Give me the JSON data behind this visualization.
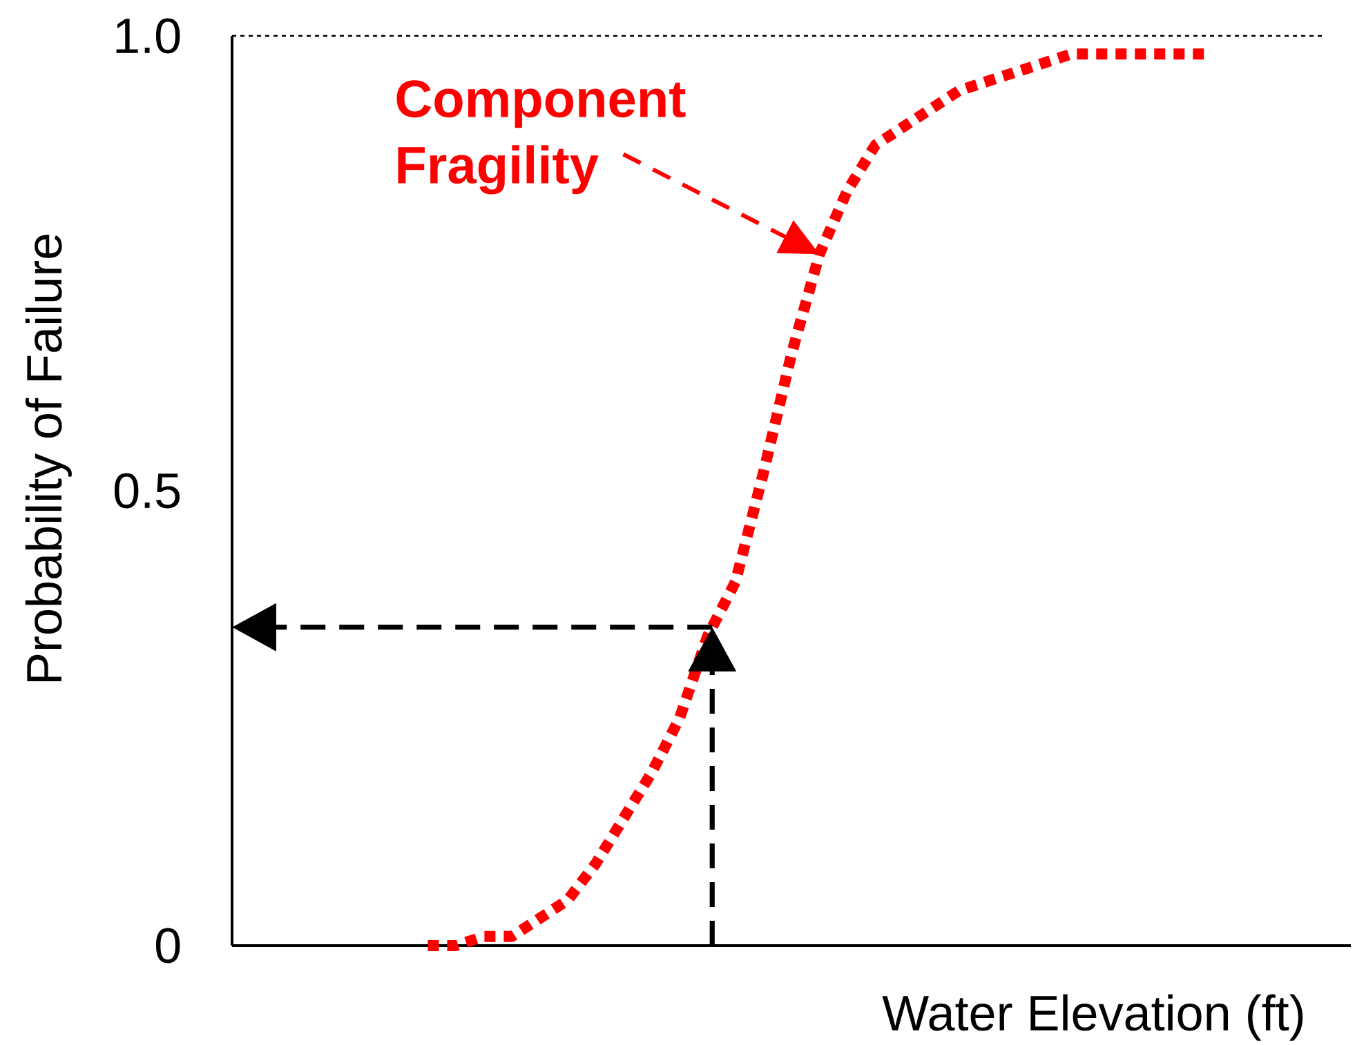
{
  "chart_data": {
    "type": "line",
    "categories": [
      null,
      null,
      null,
      null,
      null,
      null,
      null,
      null,
      null,
      null,
      null,
      null,
      null,
      null,
      null,
      null,
      null,
      null,
      null,
      null,
      null,
      null,
      null,
      null,
      null,
      null,
      null,
      null,
      null,
      null,
      null,
      null,
      null,
      null,
      null,
      null,
      null,
      null,
      null,
      null,
      null
    ],
    "series": [
      {
        "color": "#ff0000",
        "line_style": "dotted",
        "values": [
          null,
          null,
          null,
          null,
          null,
          null,
          null,
          0.0,
          0.0,
          0.01,
          0.01,
          0.03,
          0.05,
          0.09,
          0.14,
          0.19,
          0.25,
          0.34,
          0.4,
          0.52,
          0.65,
          0.76,
          0.83,
          0.88,
          0.9,
          0.92,
          0.94,
          0.95,
          0.96,
          0.97,
          0.98,
          0.98,
          0.98,
          0.98,
          0.98,
          0.98,
          null,
          null,
          null,
          null,
          null
        ]
      }
    ],
    "ylim": [
      0,
      1
    ],
    "yticks": [
      0,
      0.5,
      {
        "value": 1,
        "label": "1.0"
      }
    ],
    "xlabel": "Water Elevation (ft)",
    "ylabel": "Probability of Failure",
    "ref_lines": [
      {
        "axis": "y",
        "value": 1,
        "line_style": "dotted",
        "color": "#000000"
      },
      {
        "axis": "y",
        "value": 0.35,
        "line_style": "dashed",
        "color": "#000000"
      }
    ],
    "annotations": [
      "Component Fragility"
    ]
  }
}
